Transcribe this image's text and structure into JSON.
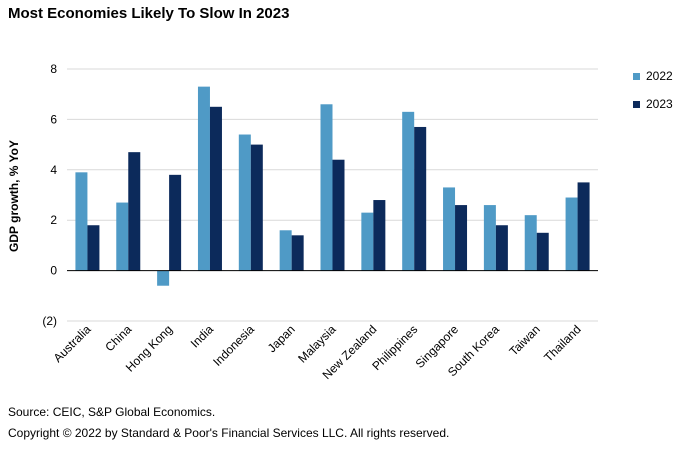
{
  "title": "Most Economies Likely To Slow In 2023",
  "footer": {
    "source": "Source: CEIC, S&P Global Economics.",
    "copyright": "Copyright © 2022 by Standard & Poor's Financial Services LLC. All rights reserved."
  },
  "chart_data": {
    "type": "bar",
    "title": "Most Economies Likely To Slow In 2023",
    "xlabel": "",
    "ylabel": "GDP growth, % YoY",
    "ylim": [
      -2,
      8
    ],
    "yticks": [
      8,
      6,
      4,
      2,
      0,
      -2
    ],
    "ytick_labels": [
      "8",
      "6",
      "4",
      "2",
      "0",
      "(2)"
    ],
    "grid": true,
    "legend": "right",
    "categories": [
      "Australia",
      "China",
      "Hong Kong",
      "India",
      "Indonesia",
      "Japan",
      "Malaysia",
      "New Zealand",
      "Philippines",
      "Singapore",
      "South Korea",
      "Taiwan",
      "Thailand"
    ],
    "series": [
      {
        "name": "2022",
        "color": "#4f9ac6",
        "values": [
          3.9,
          2.7,
          -0.6,
          7.3,
          5.4,
          1.6,
          6.6,
          2.3,
          6.3,
          3.3,
          2.6,
          2.2,
          2.9
        ]
      },
      {
        "name": "2023",
        "color": "#0c2a5b",
        "values": [
          1.8,
          4.7,
          3.8,
          6.5,
          5.0,
          1.4,
          4.4,
          2.8,
          5.7,
          2.6,
          1.8,
          1.5,
          3.5
        ]
      }
    ]
  }
}
